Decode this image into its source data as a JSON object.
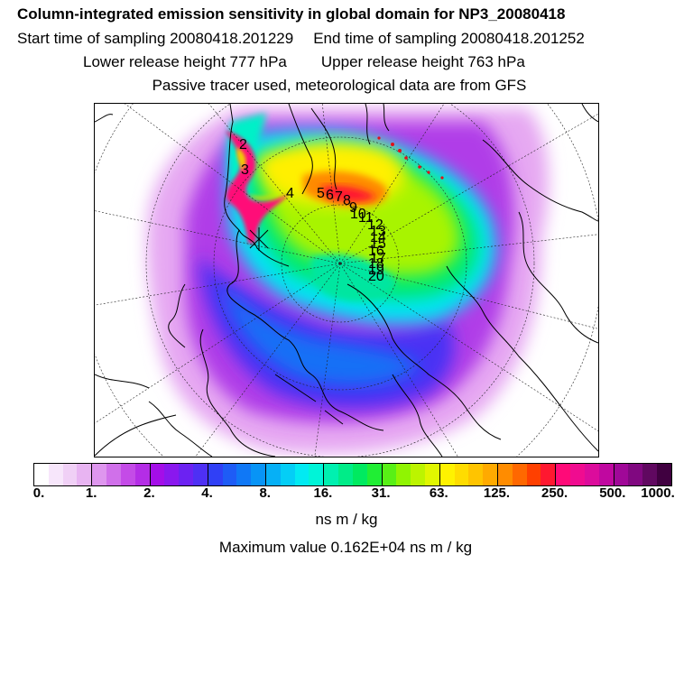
{
  "header": {
    "title": "Column-integrated emission sensitivity in global domain for NP3_20080418",
    "start_label": "Start time of sampling 20080418.201229",
    "end_label": "End time of sampling 20080418.201252",
    "lower_label": "Lower release height  777 hPa",
    "upper_label": "Upper release height  763 hPa",
    "note": "Passive tracer used, meteorological data are from GFS"
  },
  "map": {
    "track_labels": [
      "2",
      "3",
      "4",
      "5",
      "6",
      "7",
      "8",
      "9",
      "10",
      "11",
      "12",
      "13",
      "14",
      "15",
      "16",
      "17",
      "18",
      "19",
      "20"
    ]
  },
  "colorbar": {
    "tick_labels": [
      "0.",
      "1.",
      "2.",
      "4.",
      "8.",
      "16.",
      "31.",
      "63.",
      "125.",
      "250.",
      "500.",
      "1000."
    ],
    "colors": [
      "#ffffff",
      "#f7e6fb",
      "#f0d0f6",
      "#e8b4f2",
      "#de96ee",
      "#d070ea",
      "#c44be7",
      "#b42de6",
      "#a40ee8",
      "#8a18ee",
      "#6c22f2",
      "#4e30f4",
      "#3040f6",
      "#1e5cf6",
      "#1078f6",
      "#0894f6",
      "#06b0f6",
      "#04cef6",
      "#02eaf2",
      "#00f4d8",
      "#00f0b0",
      "#00ec88",
      "#00ea60",
      "#20ee34",
      "#58f016",
      "#90f402",
      "#bcf400",
      "#e0f600",
      "#fff200",
      "#ffdc00",
      "#ffc400",
      "#ffaa00",
      "#ff8c00",
      "#ff6800",
      "#ff4000",
      "#ff1830",
      "#ff0a78",
      "#f00c90",
      "#dc0c9c",
      "#c008a0",
      "#a00898",
      "#800880",
      "#600860",
      "#400040"
    ],
    "units": "ns m / kg"
  },
  "footer": {
    "max_value": "Maximum value  0.162E+04 ns m / kg"
  }
}
